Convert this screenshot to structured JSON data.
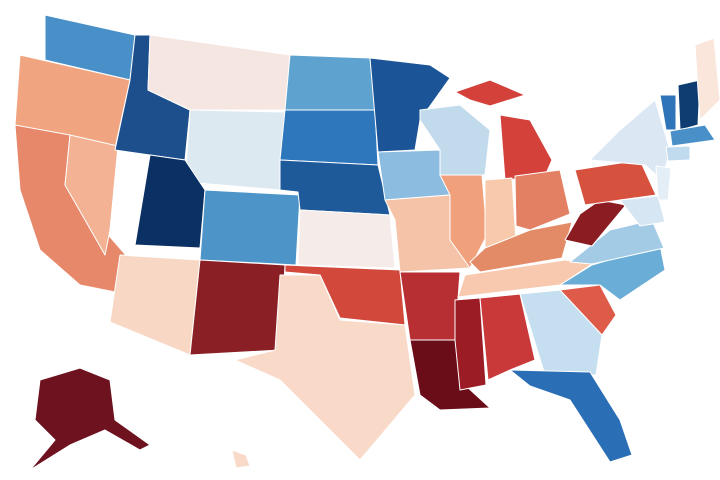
{
  "map": {
    "regions": [
      {
        "color": "#4a90c8"
      },
      {
        "color": "#f0a580"
      },
      {
        "color": "#e8886a"
      },
      {
        "color": "#f3b294"
      },
      {
        "color": "#1c4f8c"
      },
      {
        "color": "#f5e6e2"
      },
      {
        "color": "#dde9f1"
      },
      {
        "color": "#0b3063"
      },
      {
        "color": "#4d94c9"
      },
      {
        "color": "#f8d7c4"
      },
      {
        "color": "#8b1f26"
      },
      {
        "color": "#5ea2d0"
      },
      {
        "color": "#2e77bd"
      },
      {
        "color": "#1e5a99"
      },
      {
        "color": "#f5ebe9"
      },
      {
        "color": "#d2483b"
      },
      {
        "color": "#f9d9c8"
      },
      {
        "color": "#1b5597"
      },
      {
        "color": "#8cbde0"
      },
      {
        "color": "#f5c3a8"
      },
      {
        "color": "#b72f32"
      },
      {
        "color": "#6b0d19"
      },
      {
        "color": "#c1dbed"
      },
      {
        "color": "#f0a07b"
      },
      {
        "color": "#d3413a"
      },
      {
        "color": "#d3413a"
      },
      {
        "color": "#f8c9ab"
      },
      {
        "color": "#e37f62"
      },
      {
        "color": "#e38b67"
      },
      {
        "color": "#f8c9ae"
      },
      {
        "color": "#9b1c25"
      },
      {
        "color": "#c9393a"
      },
      {
        "color": "#c5def0"
      },
      {
        "color": "#2a6eb5"
      },
      {
        "color": "#de5b49"
      },
      {
        "color": "#6aaed8"
      },
      {
        "color": "#a4cbe6"
      },
      {
        "color": "#8b1c22"
      },
      {
        "color": "#d7513f"
      },
      {
        "color": "#dbe8f3"
      },
      {
        "color": "#2f74b8"
      },
      {
        "color": "#0f3d72"
      },
      {
        "color": "#fbe6dc"
      },
      {
        "color": "#4a90c8"
      },
      {
        "color": "#c0daee"
      },
      {
        "color": "#e3eef6"
      },
      {
        "color": "#d6e6f2"
      },
      {
        "color": "#6f1220"
      },
      {
        "color": "#f9d9c8"
      }
    ]
  }
}
